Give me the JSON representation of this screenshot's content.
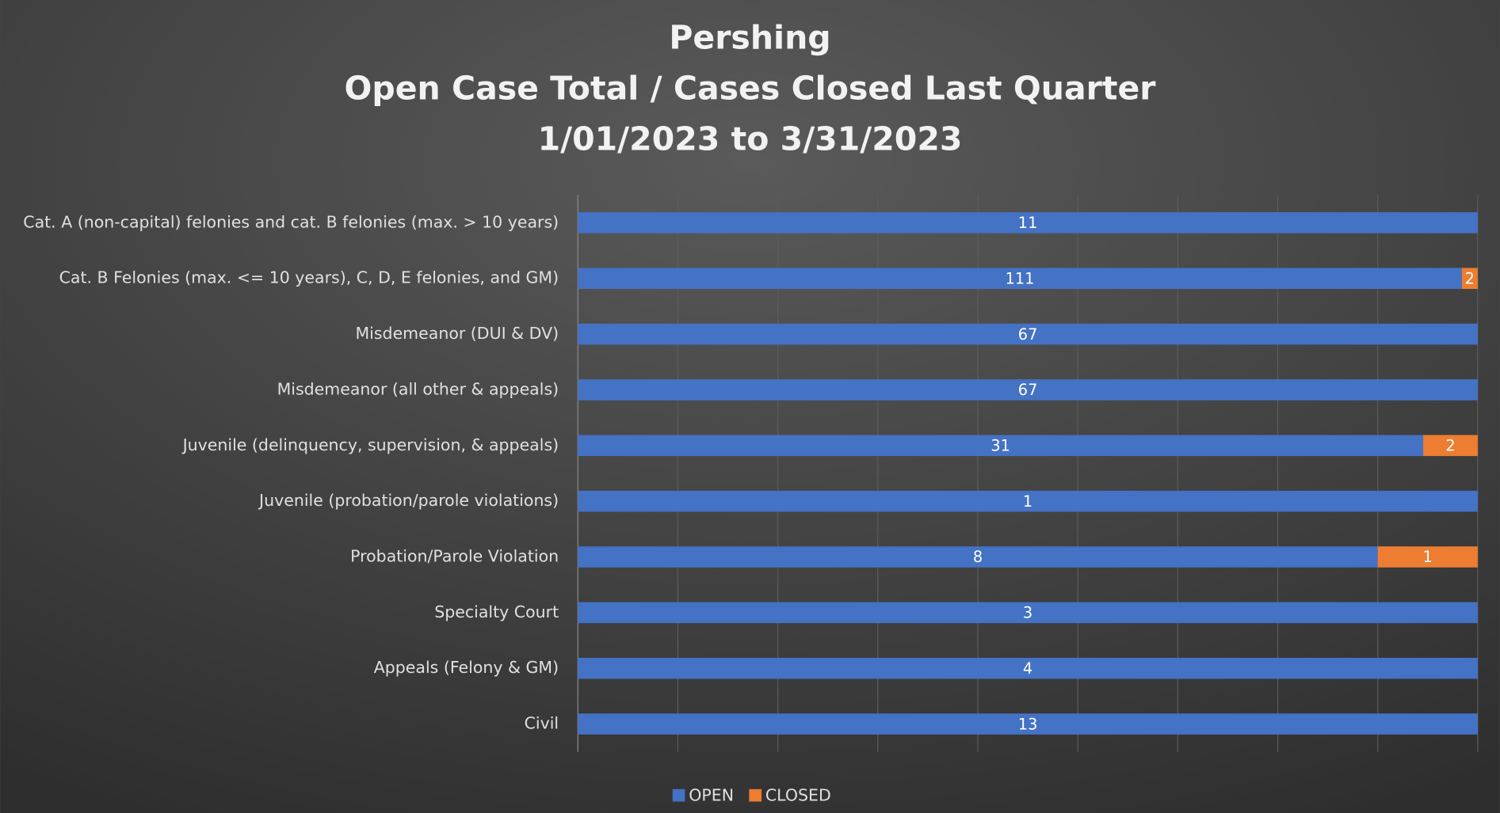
{
  "chart_data": {
    "type": "bar_stacked_100_horizontal",
    "title": [
      "Pershing",
      "Open Case Total / Cases Closed Last Quarter",
      "1/01/2023 to 3/31/2023"
    ],
    "categories": [
      "Cat. A (non-capital) felonies and cat. B felonies (max. > 10 years)",
      "Cat. B Felonies (max. <= 10 years), C, D, E felonies, and GM)",
      "Misdemeanor (DUI & DV)",
      "Misdemeanor (all other & appeals)",
      "Juvenile (delinquency, supervision, & appeals)",
      "Juvenile (probation/parole violations)",
      "Probation/Parole Violation",
      "Specialty Court",
      "Appeals (Felony & GM)",
      "Civil"
    ],
    "series": [
      {
        "name": "OPEN",
        "color": "#4472c4",
        "values": [
          11,
          111,
          67,
          67,
          31,
          1,
          8,
          3,
          4,
          13
        ]
      },
      {
        "name": "CLOSED",
        "color": "#ed7d31",
        "values": [
          null,
          2,
          null,
          null,
          2,
          null,
          1,
          null,
          null,
          null
        ]
      }
    ],
    "grid": true,
    "legend": "bottom"
  }
}
